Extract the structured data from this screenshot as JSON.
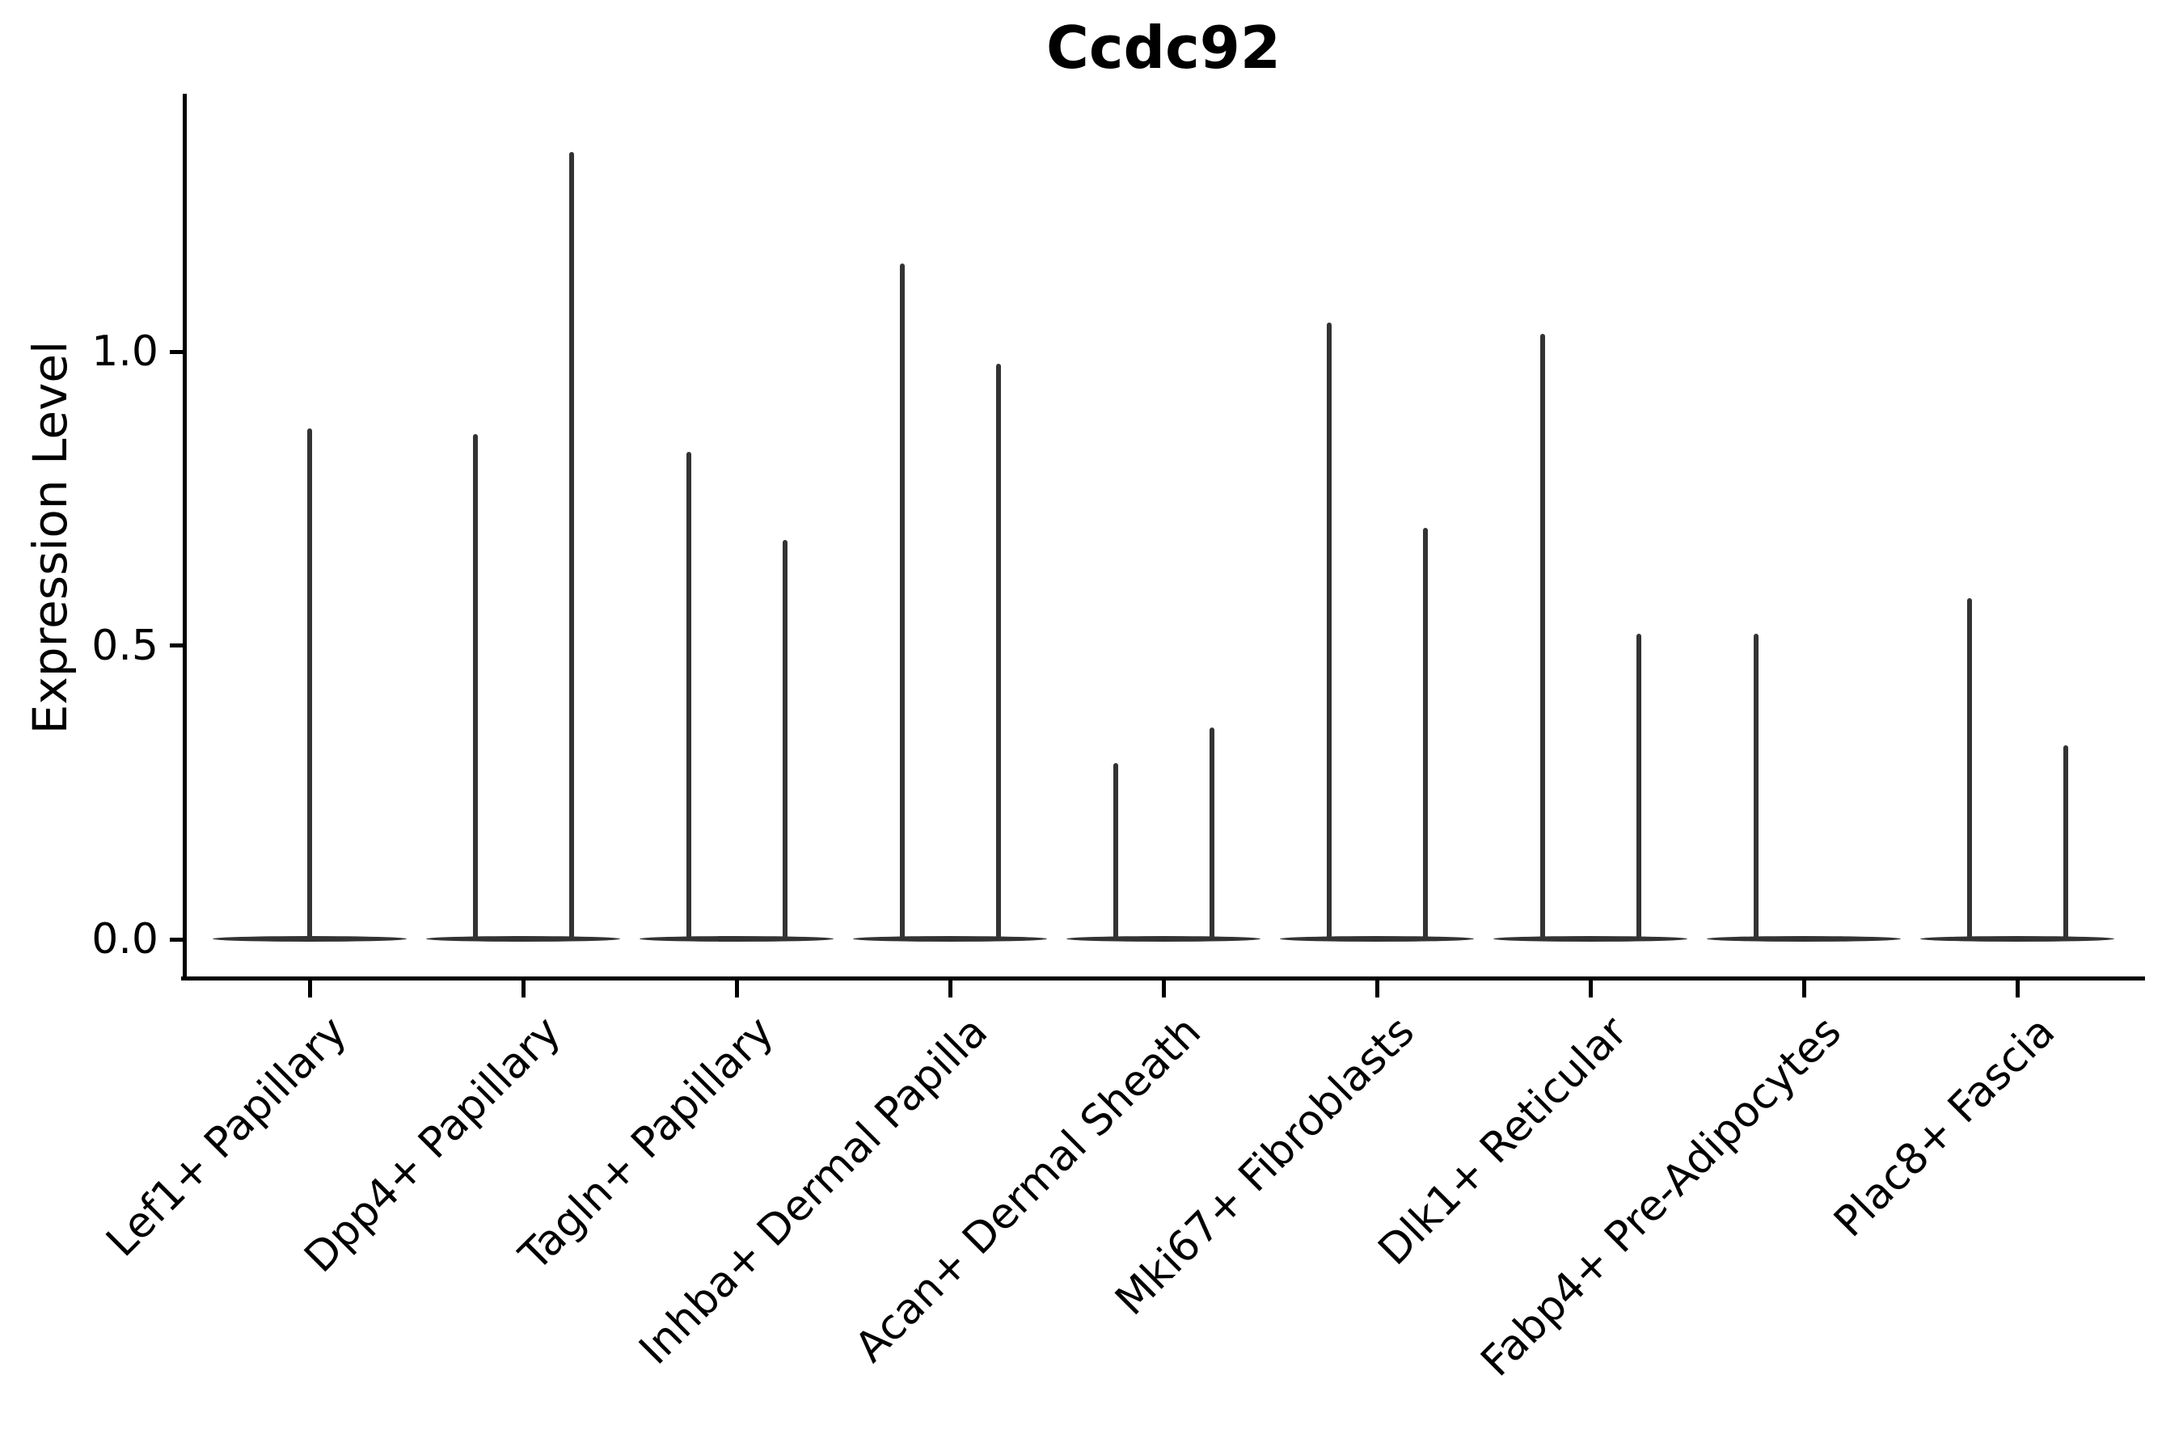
{
  "chart_data": {
    "type": "violin",
    "title": "Ccdc92",
    "ylabel": "Expression Level",
    "xlabel": "",
    "ylim": [
      -0.07,
      1.44
    ],
    "yticks": [
      0.0,
      0.5,
      1.0
    ],
    "ytick_labels": [
      "0.0",
      "0.5",
      "1.0"
    ],
    "grid": false,
    "legend": "none",
    "violin_color": "#333333",
    "axis_color": "#000000",
    "categories": [
      "Lef1+ Papillary",
      "Dpp4+ Papillary",
      "Tagln+ Papillary",
      "Inhba+ Dermal Papilla",
      "Acan+ Dermal Sheath",
      "Mki67+ Fibroblasts",
      "Dlk1+ Reticular",
      "Fabp4+ Pre-Adipocytes",
      "Plac8+ Fascia"
    ],
    "series": [
      {
        "category": "Lef1+ Papillary",
        "violins": [
          {
            "side": "center",
            "max": 0.87
          }
        ]
      },
      {
        "category": "Dpp4+ Papillary",
        "violins": [
          {
            "side": "left",
            "max": 0.86
          },
          {
            "side": "right",
            "max": 1.34
          }
        ]
      },
      {
        "category": "Tagln+ Papillary",
        "violins": [
          {
            "side": "left",
            "max": 0.83
          },
          {
            "side": "right",
            "max": 0.68
          }
        ]
      },
      {
        "category": "Inhba+ Dermal Papilla",
        "violins": [
          {
            "side": "left",
            "max": 1.15
          },
          {
            "side": "right",
            "max": 0.98
          }
        ]
      },
      {
        "category": "Acan+ Dermal Sheath",
        "violins": [
          {
            "side": "left",
            "max": 0.3
          },
          {
            "side": "right",
            "max": 0.36
          }
        ]
      },
      {
        "category": "Mki67+ Fibroblasts",
        "violins": [
          {
            "side": "left",
            "max": 1.05
          },
          {
            "side": "right",
            "max": 0.7
          }
        ]
      },
      {
        "category": "Dlk1+ Reticular",
        "violins": [
          {
            "side": "left",
            "max": 1.03
          },
          {
            "side": "right",
            "max": 0.52
          }
        ]
      },
      {
        "category": "Fabp4+ Pre-Adipocytes",
        "violins": [
          {
            "side": "left",
            "max": 0.52
          }
        ]
      },
      {
        "category": "Plac8+ Fascia",
        "violins": [
          {
            "side": "left",
            "max": 0.58
          },
          {
            "side": "right",
            "max": 0.33
          }
        ]
      }
    ],
    "baseline_value": 0.0
  }
}
